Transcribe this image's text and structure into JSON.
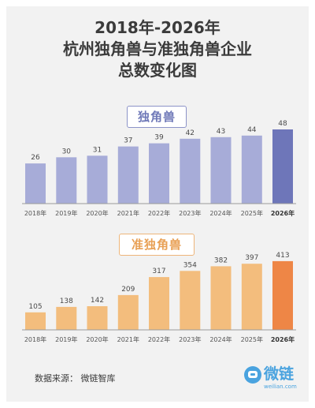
{
  "title": {
    "line1": "2018年-2026年",
    "line2": "杭州独角兽与准独角兽企业",
    "line3": "总数变化图"
  },
  "colors": {
    "chart1_bar": "#a7acd8",
    "chart1_highlight": "#6e76b9",
    "chart2_bar": "#f3bd7d",
    "chart2_highlight": "#ee8646"
  },
  "chart_data": [
    {
      "type": "bar",
      "title": "独角兽",
      "categories": [
        "2018年",
        "2019年",
        "2020年",
        "2021年",
        "2022年",
        "2023年",
        "2024年",
        "2025年",
        "2026年"
      ],
      "values": [
        26,
        30,
        31,
        37,
        39,
        42,
        43,
        44,
        48
      ],
      "highlight_category": "2026年",
      "legend": "none",
      "grid": false
    },
    {
      "type": "bar",
      "title": "准独角兽",
      "categories": [
        "2018年",
        "2019年",
        "2020年",
        "2021年",
        "2022年",
        "2023年",
        "2024年",
        "2025年",
        "2026年"
      ],
      "values": [
        105,
        138,
        142,
        209,
        317,
        354,
        382,
        397,
        413
      ],
      "highlight_category": "2026年",
      "legend": "none",
      "grid": false
    }
  ],
  "footer": {
    "source": "数据来源：  微链智库"
  },
  "logo": {
    "name": "微链",
    "url": "weilian.com"
  }
}
